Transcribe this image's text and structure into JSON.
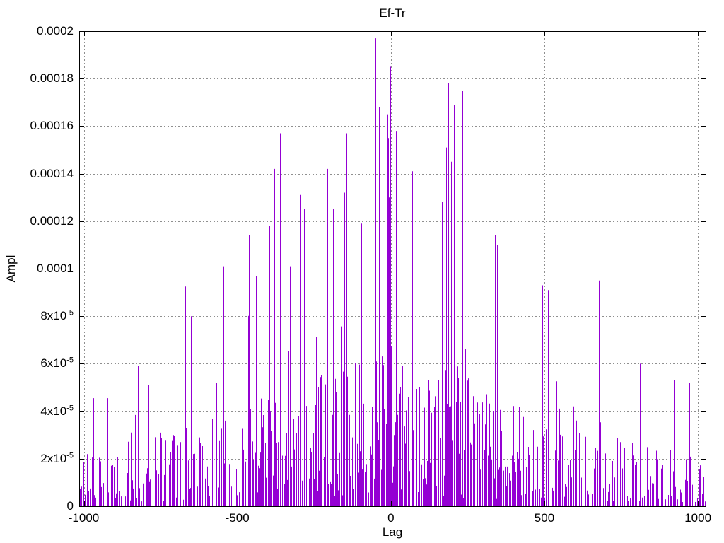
{
  "chart_data": {
    "type": "impulses",
    "title": "Ef-Tr",
    "xlabel": "Lag",
    "ylabel": "Ampl",
    "xlim": [
      -1015,
      1025
    ],
    "ylim": [
      0,
      0.0002
    ],
    "grid": true,
    "legend": "none",
    "background_color": "#ffffff",
    "series_color": "#9400d3",
    "axis_color": "#000000",
    "grid_color": "#8f8f8f",
    "x_ticks": [
      {
        "v": -1000,
        "label": "-1000"
      },
      {
        "v": -500,
        "label": "-500"
      },
      {
        "v": 0,
        "label": "0"
      },
      {
        "v": 500,
        "label": "500"
      },
      {
        "v": 1000,
        "label": "1000"
      }
    ],
    "y_ticks": [
      {
        "v": 0,
        "label": "0"
      },
      {
        "v": 2e-05,
        "base": "2x10",
        "sup": "-5"
      },
      {
        "v": 4e-05,
        "base": "4x10",
        "sup": "-5"
      },
      {
        "v": 6e-05,
        "base": "6x10",
        "sup": "-5"
      },
      {
        "v": 8e-05,
        "base": "8x10",
        "sup": "-5"
      },
      {
        "v": 0.0001,
        "label": "0.0001"
      },
      {
        "v": 0.00012,
        "label": "0.00012"
      },
      {
        "v": 0.00014,
        "label": "0.00014"
      },
      {
        "v": 0.00016,
        "label": "0.00016"
      },
      {
        "v": 0.00018,
        "label": "0.00018"
      },
      {
        "v": 0.0002,
        "label": "0.0002"
      }
    ],
    "description": "Dense cross-correlation amplitude vs lag; impulse spikes rise from zero with a roughly triangular noisy envelope peaking near lag 0 (max ~0.000197) and decaying to ~0.00002 at lags +/-1000.",
    "major_peaks": [
      [
        -970,
        4.55e-05
      ],
      [
        -924,
        4.55e-05
      ],
      [
        -887,
        5.83e-05
      ],
      [
        -825,
        5.92e-05
      ],
      [
        -790,
        5.12e-05
      ],
      [
        -736,
        8.35e-05
      ],
      [
        -670,
        9.25e-05
      ],
      [
        -651,
        8e-05
      ],
      [
        -577,
        0.000141
      ],
      [
        -563,
        0.000132
      ],
      [
        -545,
        0.000101
      ],
      [
        -462,
        0.000114
      ],
      [
        -440,
        9.7e-05
      ],
      [
        -430,
        0.000118
      ],
      [
        -396,
        0.000118
      ],
      [
        -380,
        0.000142
      ],
      [
        -361,
        0.000157
      ],
      [
        -329,
        0.000101
      ],
      [
        -294,
        0.000131
      ],
      [
        -283,
        0.000125
      ],
      [
        -255,
        0.000183
      ],
      [
        -241,
        0.000156
      ],
      [
        -207,
        0.000142
      ],
      [
        -189,
        0.000125
      ],
      [
        -152,
        0.000132
      ],
      [
        -145,
        0.000157
      ],
      [
        -115,
        0.000128
      ],
      [
        -97,
        0.000119
      ],
      [
        -50,
        0.000197
      ],
      [
        -39,
        0.000168
      ],
      [
        -11,
        0.000165
      ],
      [
        -9,
        0.000155
      ],
      [
        -6,
        0.00013
      ],
      [
        -3,
        0.000185
      ],
      [
        12,
        0.000196
      ],
      [
        16,
        0.000158
      ],
      [
        51,
        0.000153
      ],
      [
        69,
        0.000141
      ],
      [
        129,
        0.000112
      ],
      [
        166,
        0.000128
      ],
      [
        180,
        0.000151
      ],
      [
        186,
        0.000178
      ],
      [
        195,
        0.000145
      ],
      [
        205,
        0.000169
      ],
      [
        232,
        0.000175
      ],
      [
        239,
        0.000119
      ],
      [
        292,
        0.000128
      ],
      [
        338,
        0.000114
      ],
      [
        345,
        0.00011
      ],
      [
        419,
        8.8e-05
      ],
      [
        442,
        0.000126
      ],
      [
        492,
        9.3e-05
      ],
      [
        511,
        9.1e-05
      ],
      [
        545,
        8.5e-05
      ],
      [
        568,
        8.7e-05
      ],
      [
        677,
        9.5e-05
      ],
      [
        741,
        6.4e-05
      ],
      [
        810,
        6e-05
      ],
      [
        868,
        3.75e-05
      ],
      [
        921,
        5.3e-05
      ],
      [
        972,
        5.2e-05
      ]
    ],
    "generator": {
      "seed": 20,
      "n_base": 430,
      "n_center_extra": 210,
      "center_halfwidth": 460,
      "envelope_halfwidth": 1060,
      "envelope_power": 1.2,
      "typical_center": 6.8e-05,
      "typical_edge": 2.1e-05,
      "height_power": 1.3,
      "outlier_prob": 0.07,
      "outlier_min": 1.5,
      "outlier_max": 2.3,
      "cap": 0.000155
    }
  }
}
